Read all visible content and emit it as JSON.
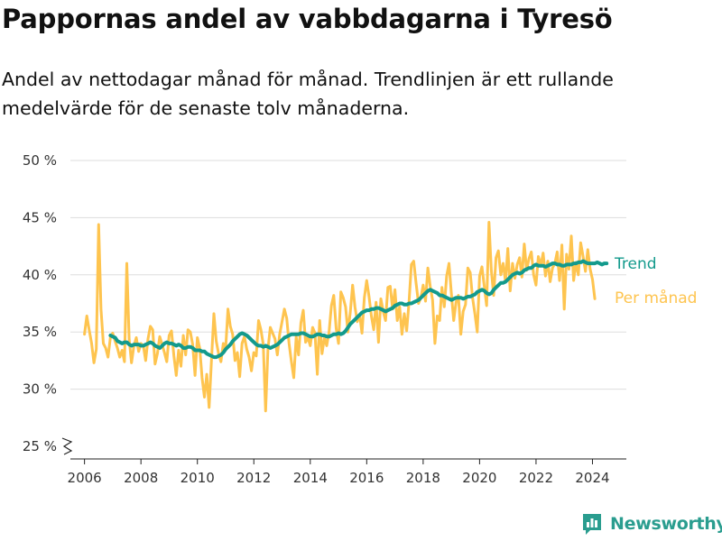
{
  "brand": {
    "name": "Newsworthy",
    "icon": "newsworthy-logo-icon",
    "color": "#2a9d8f"
  },
  "chart_data": {
    "type": "line",
    "title": "Pappornas andel av vabbdagarna i Tyresö",
    "subtitle": "Andel av nettodagar månad för månad. Trendlinjen är ett rullande medelvärde för de senaste tolv månaderna.",
    "xlabel": "",
    "ylabel": "",
    "xlim": [
      2005.5,
      2025.2
    ],
    "ylim": [
      25,
      50
    ],
    "x_ticks": [
      2006,
      2008,
      2010,
      2012,
      2014,
      2016,
      2018,
      2020,
      2022,
      2024
    ],
    "y_ticks": [
      25,
      30,
      35,
      40,
      45,
      50
    ],
    "y_tick_labels": [
      "25 %",
      "30 %",
      "35 %",
      "40 %",
      "45 %",
      "50 %"
    ],
    "axis_break": true,
    "grid": "horizontal",
    "series": [
      {
        "name": "Per månad",
        "color": "#fec44f",
        "start": 2006.0,
        "step_months": 1,
        "values": [
          34.8,
          36.4,
          35.2,
          34.0,
          32.3,
          33.5,
          44.4,
          37.0,
          34.0,
          33.6,
          32.8,
          34.5,
          34.9,
          34.2,
          33.6,
          32.8,
          33.4,
          32.4,
          41.0,
          34.4,
          32.3,
          33.8,
          34.5,
          33.3,
          34.0,
          33.8,
          32.5,
          34.4,
          35.5,
          35.2,
          32.2,
          33.1,
          34.6,
          33.9,
          33.2,
          32.4,
          34.7,
          35.1,
          32.9,
          31.2,
          33.4,
          32.0,
          34.7,
          33.0,
          35.2,
          35.0,
          33.9,
          31.2,
          34.5,
          33.6,
          31.0,
          29.3,
          31.3,
          28.4,
          32.5,
          36.6,
          34.2,
          33.1,
          32.4,
          34.0,
          33.5,
          37.0,
          35.5,
          34.8,
          32.5,
          33.2,
          31.1,
          34.0,
          34.6,
          33.5,
          32.8,
          31.6,
          33.2,
          32.9,
          36.0,
          35.2,
          33.9,
          28.1,
          33.5,
          35.4,
          34.9,
          34.4,
          33.0,
          34.8,
          35.9,
          37.0,
          36.2,
          34.0,
          32.4,
          31.0,
          34.6,
          33.0,
          35.8,
          36.9,
          34.1,
          34.5,
          33.8,
          35.4,
          34.9,
          31.3,
          36.0,
          33.1,
          34.5,
          33.8,
          35.0,
          37.3,
          38.2,
          35.3,
          34.0,
          38.5,
          38.0,
          37.2,
          35.0,
          36.7,
          39.1,
          37.2,
          35.9,
          36.5,
          34.9,
          38.0,
          39.5,
          38.1,
          36.4,
          35.2,
          37.6,
          34.1,
          37.9,
          36.8,
          36.0,
          38.9,
          39.0,
          37.0,
          38.7,
          36.0,
          37.2,
          34.8,
          36.6,
          35.1,
          37.6,
          40.9,
          41.2,
          39.3,
          37.5,
          38.0,
          39.1,
          37.7,
          40.6,
          39.0,
          37.8,
          34.0,
          36.4,
          36.0,
          38.9,
          37.2,
          39.9,
          41.0,
          38.4,
          36.0,
          37.6,
          38.2,
          34.8,
          36.8,
          37.4,
          40.6,
          40.2,
          38.0,
          36.6,
          35.0,
          39.9,
          40.7,
          39.0,
          37.3,
          44.6,
          40.4,
          38.2,
          41.5,
          42.1,
          40.0,
          41.0,
          39.4,
          42.3,
          38.6,
          41.0,
          39.7,
          40.9,
          41.5,
          39.8,
          42.7,
          40.4,
          41.4,
          42.0,
          40.0,
          39.1,
          41.6,
          40.8,
          41.9,
          39.9,
          41.2,
          39.4,
          40.6,
          41.0,
          42.0,
          39.5,
          42.6,
          37.0,
          41.8,
          40.5,
          43.4,
          39.5,
          41.1,
          40.0,
          42.8,
          41.6,
          40.3,
          42.2,
          40.5,
          39.6,
          37.9
        ]
      },
      {
        "name": "Trend",
        "color": "#139a8c",
        "start": 2006.92,
        "step_months": 1,
        "values": [
          34.7,
          34.6,
          34.5,
          34.2,
          34.1,
          34.0,
          34.1,
          34.1,
          33.9,
          33.8,
          33.9,
          33.9,
          33.9,
          33.8,
          33.8,
          33.9,
          34.0,
          34.1,
          34.0,
          33.8,
          33.7,
          33.6,
          33.8,
          34.0,
          34.1,
          34.0,
          34.0,
          33.9,
          33.8,
          33.9,
          33.8,
          33.6,
          33.6,
          33.7,
          33.7,
          33.6,
          33.4,
          33.4,
          33.4,
          33.3,
          33.3,
          33.1,
          33.0,
          32.9,
          32.8,
          32.8,
          32.9,
          33.0,
          33.2,
          33.5,
          33.7,
          33.9,
          34.2,
          34.4,
          34.6,
          34.8,
          34.9,
          34.8,
          34.7,
          34.5,
          34.3,
          34.1,
          33.9,
          33.8,
          33.8,
          33.7,
          33.8,
          33.7,
          33.6,
          33.7,
          33.8,
          33.9,
          34.1,
          34.3,
          34.5,
          34.6,
          34.7,
          34.8,
          34.8,
          34.8,
          34.8,
          34.9,
          34.9,
          34.8,
          34.7,
          34.6,
          34.6,
          34.7,
          34.8,
          34.8,
          34.7,
          34.7,
          34.6,
          34.6,
          34.7,
          34.8,
          34.8,
          34.9,
          34.8,
          34.9,
          35.1,
          35.4,
          35.7,
          35.9,
          36.1,
          36.3,
          36.5,
          36.7,
          36.8,
          36.9,
          36.9,
          37.0,
          37.0,
          37.1,
          37.1,
          37.0,
          36.9,
          36.8,
          36.9,
          37.0,
          37.1,
          37.3,
          37.4,
          37.5,
          37.5,
          37.4,
          37.4,
          37.5,
          37.5,
          37.6,
          37.7,
          37.8,
          38.0,
          38.2,
          38.4,
          38.6,
          38.7,
          38.6,
          38.5,
          38.4,
          38.2,
          38.2,
          38.1,
          38.0,
          37.9,
          37.8,
          37.9,
          38.0,
          38.0,
          38.0,
          37.9,
          38.0,
          38.1,
          38.1,
          38.2,
          38.3,
          38.5,
          38.6,
          38.7,
          38.6,
          38.4,
          38.3,
          38.4,
          38.7,
          38.9,
          39.1,
          39.3,
          39.3,
          39.4,
          39.6,
          39.8,
          40.0,
          40.1,
          40.2,
          40.1,
          40.2,
          40.4,
          40.5,
          40.6,
          40.6,
          40.8,
          40.9,
          40.8,
          40.8,
          40.8,
          40.7,
          40.8,
          40.9,
          41.0,
          41.0,
          40.9,
          40.9,
          40.8,
          40.8,
          40.9,
          40.9,
          40.9,
          41.0,
          41.0,
          41.1,
          41.1,
          41.2,
          41.1,
          41.0,
          41.0,
          41.0,
          41.0,
          41.1,
          41.0,
          40.9,
          41.0,
          41.0
        ]
      }
    ]
  }
}
